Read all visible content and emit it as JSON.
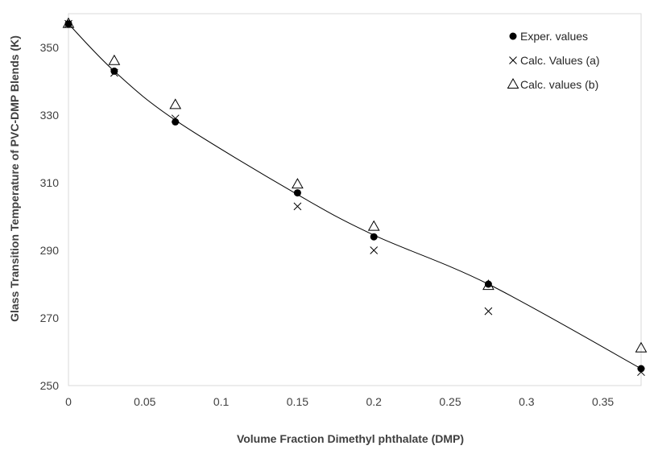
{
  "chart_data": {
    "type": "scatter",
    "title": "",
    "xlabel": "Volume Fraction Dimethyl phthalate (DMP)",
    "ylabel": "Glass Transition Temperature of PVC-DMP Blends (K)",
    "xlim": [
      0,
      0.375
    ],
    "ylim": [
      250,
      360
    ],
    "x_ticks": [
      0,
      0.05,
      0.1,
      0.15,
      0.2,
      0.25,
      0.3,
      0.35
    ],
    "x_tick_labels": [
      "0",
      "0.05",
      "0.1",
      "0.15",
      "0.2",
      "0.25",
      "0.3",
      "0.35"
    ],
    "y_ticks": [
      250,
      270,
      290,
      310,
      330,
      350
    ],
    "y_tick_labels": [
      "250",
      "270",
      "290",
      "310",
      "330",
      "350"
    ],
    "grid": false,
    "legend_position": "top-right",
    "x": [
      0,
      0.03,
      0.07,
      0.15,
      0.2,
      0.275,
      0.375
    ],
    "series": [
      {
        "name": "Exper. values",
        "marker": "filled-circle",
        "color": "#000000",
        "values": [
          357,
          343,
          328,
          307,
          294,
          280,
          255
        ]
      },
      {
        "name": "Calc. Values (a)",
        "marker": "x",
        "color": "#000000",
        "values": [
          357,
          342.5,
          329,
          303,
          290,
          272,
          254
        ]
      },
      {
        "name": "Calc. values (b)",
        "marker": "open-triangle",
        "color": "#000000",
        "values": [
          357,
          346,
          333,
          309.5,
          297,
          279.5,
          261
        ]
      }
    ],
    "trendline": {
      "x": [
        0,
        0.03,
        0.07,
        0.15,
        0.2,
        0.275,
        0.375
      ],
      "y": [
        357,
        343,
        328.5,
        306.5,
        294.5,
        280,
        255
      ]
    }
  }
}
